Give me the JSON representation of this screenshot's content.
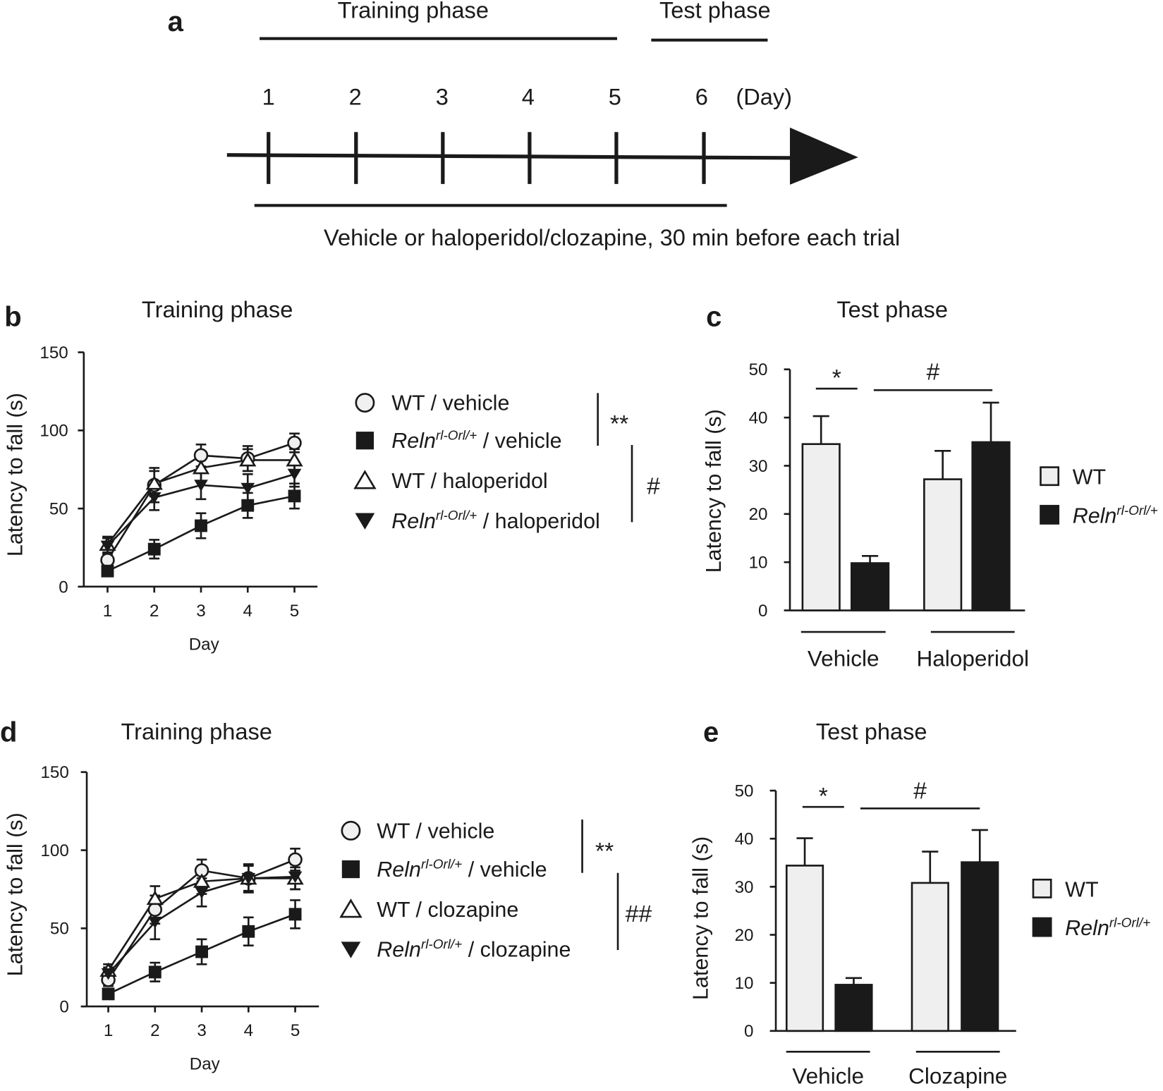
{
  "timeline": {
    "panel": "a",
    "training_label": "Training phase",
    "test_label": "Test phase",
    "days": [
      "1",
      "2",
      "3",
      "4",
      "5",
      "6"
    ],
    "day_unit": "(Day)",
    "treatment_note": "Vehicle or haloperidol/clozapine, 30 min before each trial"
  },
  "chart_data": [
    {
      "panel": "b",
      "type": "line",
      "title": "Training phase",
      "xlabel": "Day",
      "ylabel": "Latency to fall (s)",
      "x": [
        1,
        2,
        3,
        4,
        5
      ],
      "ylim": [
        0,
        150
      ],
      "yticks": [
        0,
        50,
        100,
        150
      ],
      "legend": "right",
      "series": [
        {
          "label": {
            "text": "WT / vehicle"
          },
          "marker": "open-circle",
          "values": [
            17,
            65,
            84,
            82,
            92
          ],
          "errors": [
            4,
            11,
            7,
            8,
            6
          ]
        },
        {
          "label": {
            "italic": "Reln",
            "sup": "rl-Orl/+",
            "text": " / vehicle"
          },
          "marker": "filled-square",
          "values": [
            10,
            24,
            39,
            52,
            58
          ],
          "errors": [
            3,
            6,
            8,
            8,
            8
          ]
        },
        {
          "label": {
            "text": "WT / haloperidol"
          },
          "marker": "open-triangle-up",
          "values": [
            27,
            66,
            76,
            81,
            81
          ],
          "errors": [
            5,
            8,
            9,
            7,
            7
          ]
        },
        {
          "label": {
            "italic": "Reln",
            "sup": "rl-Orl/+",
            "text": " / haloperidol"
          },
          "marker": "filled-triangle-down",
          "values": [
            26,
            57,
            65,
            63,
            72
          ],
          "errors": [
            5,
            8,
            9,
            9,
            8
          ]
        }
      ],
      "significance": [
        {
          "label": "**",
          "from_series": 0,
          "to_series": 1
        },
        {
          "label": "#",
          "from_series": 1,
          "to_series": 3
        }
      ]
    },
    {
      "panel": "c",
      "type": "bar",
      "title": "Test phase",
      "ylabel": "Latency to fall (s)",
      "ylim": [
        0,
        50
      ],
      "yticks": [
        0,
        10,
        20,
        30,
        40,
        50
      ],
      "legend": "right",
      "categories": [
        "Vehicle",
        "Haloperidol"
      ],
      "series": [
        {
          "label": {
            "text": "WT"
          },
          "color": "#efefef",
          "values": [
            34.5,
            27.2
          ],
          "errors": [
            5.8,
            5.9
          ]
        },
        {
          "label": {
            "italic": "Reln",
            "sup": "rl-Orl/+"
          },
          "color": "#1a1a1a",
          "values": [
            9.8,
            34.9
          ],
          "errors": [
            1.5,
            8.2
          ]
        }
      ],
      "significance": [
        {
          "label": "*",
          "from": [
            0,
            0
          ],
          "to": [
            0,
            1
          ]
        },
        {
          "label": "#",
          "from": [
            0,
            1
          ],
          "to": [
            1,
            1
          ]
        }
      ]
    },
    {
      "panel": "d",
      "type": "line",
      "title": "Training phase",
      "xlabel": "Day",
      "ylabel": "Latency to fall (s)",
      "x": [
        1,
        2,
        3,
        4,
        5
      ],
      "ylim": [
        0,
        150
      ],
      "yticks": [
        0,
        50,
        100,
        150
      ],
      "legend": "right",
      "series": [
        {
          "label": {
            "text": "WT / vehicle"
          },
          "marker": "open-circle",
          "values": [
            17,
            62,
            87,
            82,
            94
          ],
          "errors": [
            4,
            9,
            7,
            9,
            7
          ]
        },
        {
          "label": {
            "italic": "Reln",
            "sup": "rl-Orl/+",
            "text": " / vehicle"
          },
          "marker": "filled-square",
          "values": [
            8,
            22,
            35,
            48,
            59
          ],
          "errors": [
            3,
            6,
            8,
            9,
            9
          ]
        },
        {
          "label": {
            "text": "WT / clozapine"
          },
          "marker": "open-triangle-up",
          "values": [
            23,
            69,
            80,
            82,
            82
          ],
          "errors": [
            4,
            8,
            8,
            8,
            7
          ]
        },
        {
          "label": {
            "italic": "Reln",
            "sup": "rl-Orl/+",
            "text": " / clozapine"
          },
          "marker": "filled-triangle-down",
          "values": [
            21,
            54,
            73,
            82,
            83
          ],
          "errors": [
            4,
            11,
            9,
            9,
            8
          ]
        }
      ],
      "significance": [
        {
          "label": "**",
          "from_series": 0,
          "to_series": 1
        },
        {
          "label": "##",
          "from_series": 1,
          "to_series": 3
        }
      ]
    },
    {
      "panel": "e",
      "type": "bar",
      "title": "Test phase",
      "ylabel": "Latency to fall (s)",
      "ylim": [
        0,
        50
      ],
      "yticks": [
        0,
        10,
        20,
        30,
        40,
        50
      ],
      "legend": "right",
      "categories": [
        "Vehicle",
        "Clozapine"
      ],
      "series": [
        {
          "label": {
            "text": "WT"
          },
          "color": "#efefef",
          "values": [
            34.4,
            30.8
          ],
          "errors": [
            5.7,
            6.5
          ]
        },
        {
          "label": {
            "italic": "Reln",
            "sup": "rl-Orl/+"
          },
          "color": "#1a1a1a",
          "values": [
            9.6,
            35.1
          ],
          "errors": [
            1.4,
            6.7
          ]
        }
      ],
      "significance": [
        {
          "label": "*",
          "from": [
            0,
            0
          ],
          "to": [
            0,
            1
          ]
        },
        {
          "label": "#",
          "from": [
            0,
            1
          ],
          "to": [
            1,
            1
          ]
        }
      ]
    }
  ]
}
